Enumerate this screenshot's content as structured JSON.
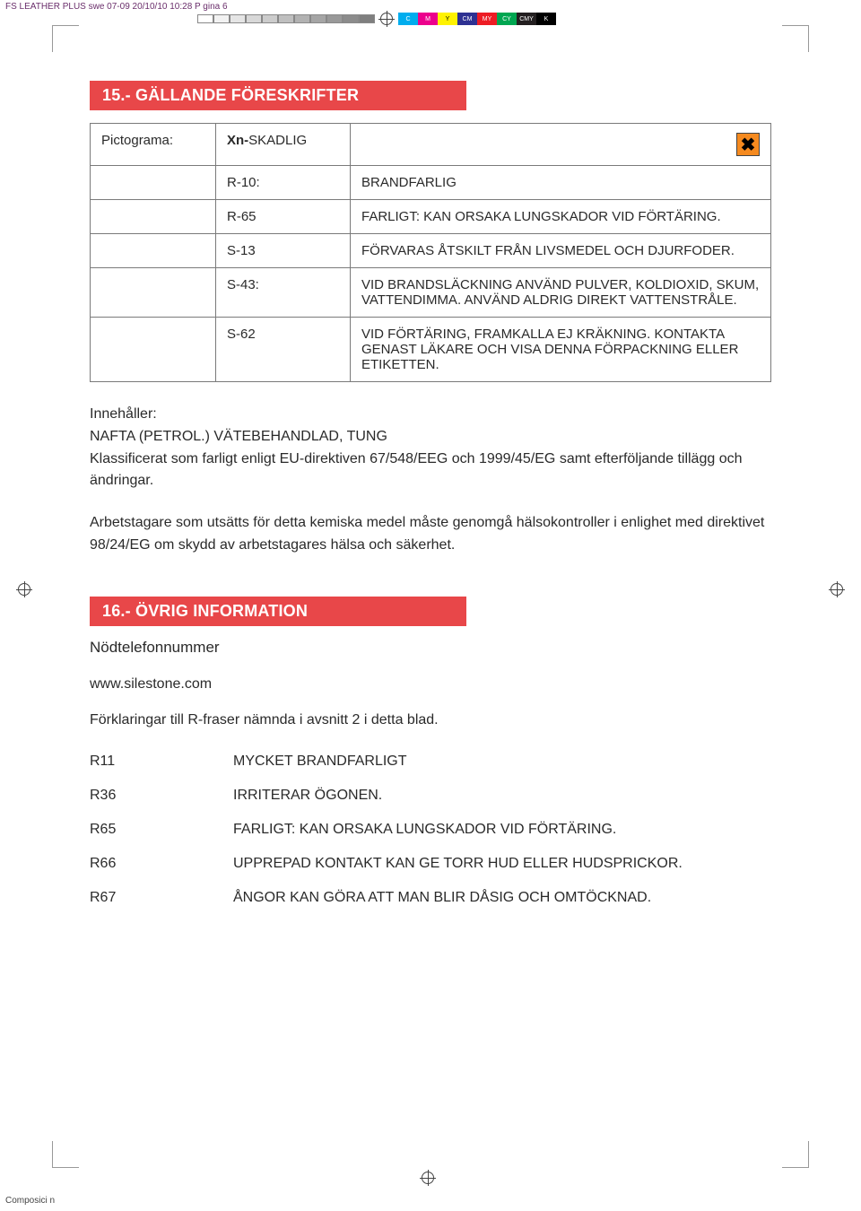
{
  "prepress": {
    "slug": "FS LEATHER PLUS swe 07-09 20/10/10 10:28 P gina 6",
    "grayscale_swatches": [
      "#ffffff",
      "#f2f2f2",
      "#e5e5e5",
      "#d8d8d8",
      "#cccccc",
      "#bfbfbf",
      "#b2b2b2",
      "#a5a5a5",
      "#999999",
      "#8c8c8c",
      "#7f7f7f"
    ],
    "cmyk_labels": [
      "C",
      "M",
      "Y",
      "CM",
      "MY",
      "CY",
      "CMY",
      "K"
    ],
    "cmyk_colors": [
      "#00adee",
      "#ec008c",
      "#fff200",
      "#2e3192",
      "#ed1c24",
      "#00a651",
      "#231f20",
      "#000000"
    ]
  },
  "section15": {
    "title": "15.- GÄLLANDE FÖRESKRIFTER",
    "rows": [
      {
        "col1": "Pictograma:",
        "col2_prefix": "Xn-",
        "col2": "SKADLIG",
        "col3": "",
        "hazard_icon": true
      },
      {
        "col1": "",
        "col2": "R-10:",
        "col3": "BRANDFARLIG"
      },
      {
        "col1": "",
        "col2": "R-65",
        "col3": "FARLIGT: KAN ORSAKA LUNGSKADOR VID FÖRTÄRING."
      },
      {
        "col1": "",
        "col2": "S-13",
        "col3": "FÖRVARAS ÅTSKILT FRÅN LIVSMEDEL OCH DJURFODER."
      },
      {
        "col1": "",
        "col2": "S-43:",
        "col3": "VID BRANDSLÄCKNING ANVÄND PULVER, KOLDIOXID, SKUM, VATTENDIMMA. ANVÄND ALDRIG DIREKT VATTENSTRÅLE."
      },
      {
        "col1": "",
        "col2": "S-62",
        "col3": "VID FÖRTÄRING, FRAMKALLA EJ KRÄKNING. KONTAKTA GENAST LÄKARE OCH VISA DENNA FÖRPACKNING ELLER ETIKETTEN."
      }
    ],
    "hazard_icon_char": "✖"
  },
  "contains": {
    "heading": "Innehåller:",
    "line1": "NAFTA (PETROL.) VÄTEBEHANDLAD, TUNG",
    "line2": "Klassificerat som farligt enligt EU-direktiven 67/548/EEG och 1999/45/EG samt efterföljande tillägg och ändringar.",
    "line3": "Arbetstagare som utsätts för detta kemiska medel måste genomgå hälsokontroller i enlighet med direktivet 98/24/EG om skydd av arbetstagares hälsa och säkerhet."
  },
  "section16": {
    "title": "16.- ÖVRIG INFORMATION",
    "subhead": "Nödtelefonnummer",
    "link": "www.silestone.com",
    "explain": "Förklaringar till R-fraser nämnda i avsnitt 2 i detta blad.",
    "rphrases": [
      {
        "code": "R11",
        "text": "MYCKET BRANDFARLIGT"
      },
      {
        "code": "R36",
        "text": "IRRITERAR ÖGONEN."
      },
      {
        "code": "R65",
        "text": "FARLIGT: KAN ORSAKA LUNGSKADOR VID FÖRTÄRING."
      },
      {
        "code": "R66",
        "text": "UPPREPAD KONTAKT KAN GE TORR HUD ELLER HUDSPRICKOR."
      },
      {
        "code": "R67",
        "text": "ÅNGOR KAN GÖRA ATT MAN BLIR DÅSIG OCH OMTÖCKNAD."
      }
    ]
  },
  "footer": "Composici n",
  "colors": {
    "banner_bg": "#e84749",
    "banner_text": "#ffffff",
    "table_border": "#7a7a7a",
    "hazard_bg": "#f58a1f",
    "text": "#2a2a2a"
  }
}
